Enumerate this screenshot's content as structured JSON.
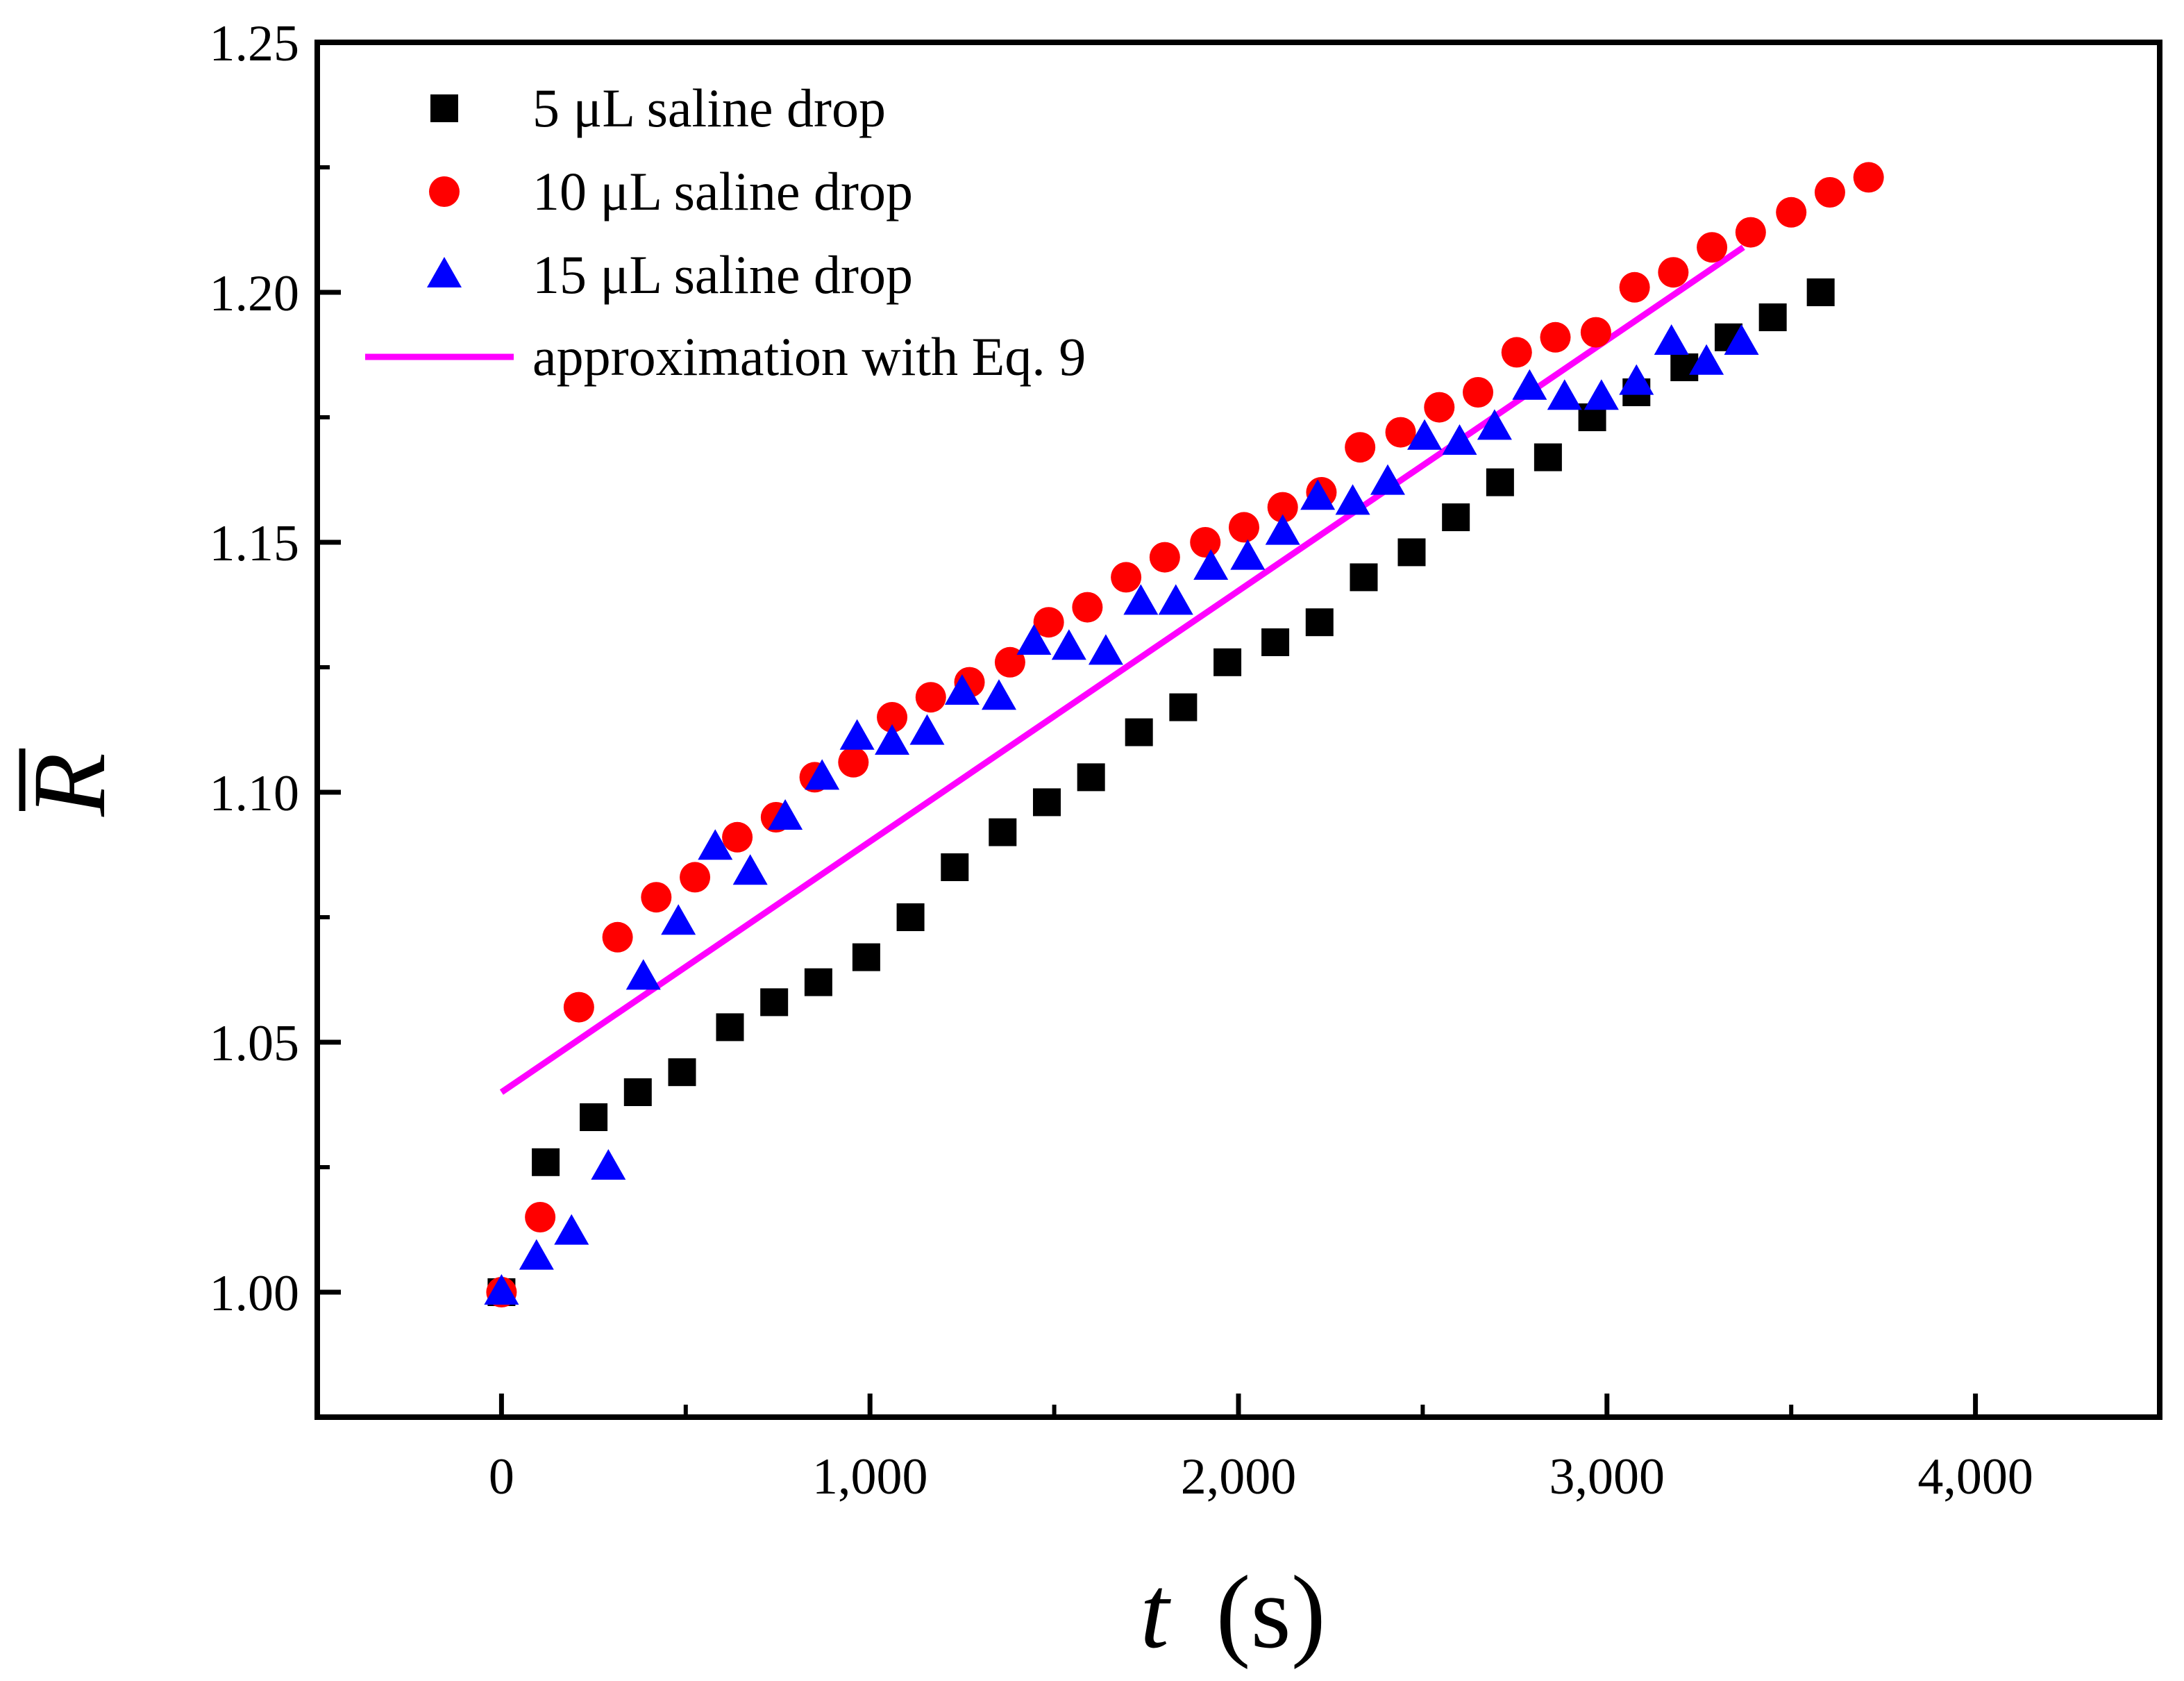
{
  "chart_data": {
    "type": "scatter",
    "title": "",
    "xlabel": {
      "var": "t",
      "unit": "(s)"
    },
    "ylabel": "R",
    "xlim": [
      -500,
      4500
    ],
    "ylim": [
      0.975,
      1.25
    ],
    "xticks": [
      0,
      1000,
      2000,
      3000,
      4000
    ],
    "xtick_labels": [
      "0",
      "1,000",
      "2,000",
      "3,000",
      "4,000"
    ],
    "yticks": [
      1.0,
      1.05,
      1.1,
      1.15,
      1.2,
      1.25
    ],
    "ytick_labels": [
      "1.00",
      "1.05",
      "1.10",
      "1.15",
      "1.20",
      "1.25"
    ],
    "grid": false,
    "legend_position": "top-left",
    "series": [
      {
        "name": "5 μL saline drop",
        "marker": "square",
        "color": "#000000",
        "x": [
          0,
          120,
          250,
          370,
          490,
          620,
          740,
          860,
          990,
          1110,
          1230,
          1360,
          1480,
          1600,
          1730,
          1850,
          1970,
          2100,
          2220,
          2340,
          2470,
          2590,
          2710,
          2840,
          2960,
          3080,
          3210,
          3330,
          3450,
          3580
        ],
        "y": [
          1.0,
          1.026,
          1.035,
          1.04,
          1.044,
          1.053,
          1.058,
          1.062,
          1.067,
          1.075,
          1.085,
          1.092,
          1.098,
          1.103,
          1.112,
          1.117,
          1.126,
          1.13,
          1.134,
          1.143,
          1.148,
          1.155,
          1.162,
          1.167,
          1.175,
          1.18,
          1.185,
          1.191,
          1.195,
          1.2
        ]
      },
      {
        "name": "10 μL saline drop",
        "marker": "circle",
        "color": "#ff0000",
        "x": [
          0,
          105,
          210,
          315,
          420,
          525,
          640,
          745,
          850,
          955,
          1060,
          1165,
          1270,
          1380,
          1485,
          1590,
          1695,
          1800,
          1910,
          2015,
          2120,
          2225,
          2330,
          2440,
          2545,
          2650,
          2755,
          2860,
          2970,
          3075,
          3180,
          3285,
          3390,
          3500,
          3605,
          3710
        ],
        "y": [
          1.0,
          1.015,
          1.057,
          1.071,
          1.079,
          1.083,
          1.091,
          1.095,
          1.103,
          1.106,
          1.115,
          1.119,
          1.122,
          1.126,
          1.134,
          1.137,
          1.143,
          1.147,
          1.15,
          1.153,
          1.157,
          1.16,
          1.169,
          1.172,
          1.177,
          1.18,
          1.188,
          1.191,
          1.192,
          1.201,
          1.204,
          1.209,
          1.212,
          1.216,
          1.22,
          1.223
        ]
      },
      {
        "name": "15 μL saline drop",
        "marker": "triangle",
        "color": "#0000ff",
        "x": [
          0,
          95,
          190,
          290,
          385,
          480,
          580,
          675,
          770,
          870,
          965,
          1060,
          1155,
          1250,
          1350,
          1445,
          1540,
          1640,
          1735,
          1830,
          1925,
          2025,
          2120,
          2215,
          2310,
          2405,
          2505,
          2600,
          2695,
          2790,
          2885,
          2985,
          3080,
          3175,
          3270,
          3365
        ],
        "y": [
          1.0,
          1.007,
          1.012,
          1.025,
          1.063,
          1.074,
          1.089,
          1.084,
          1.095,
          1.103,
          1.111,
          1.11,
          1.112,
          1.12,
          1.119,
          1.13,
          1.129,
          1.128,
          1.138,
          1.138,
          1.145,
          1.147,
          1.152,
          1.159,
          1.158,
          1.162,
          1.171,
          1.17,
          1.173,
          1.181,
          1.179,
          1.179,
          1.182,
          1.19,
          1.186,
          1.19
        ]
      },
      {
        "name": "approximation with Eq. 9",
        "type": "line",
        "color": "#ff00ff",
        "x": [
          0,
          3370
        ],
        "y": [
          1.04,
          1.209
        ]
      }
    ]
  }
}
